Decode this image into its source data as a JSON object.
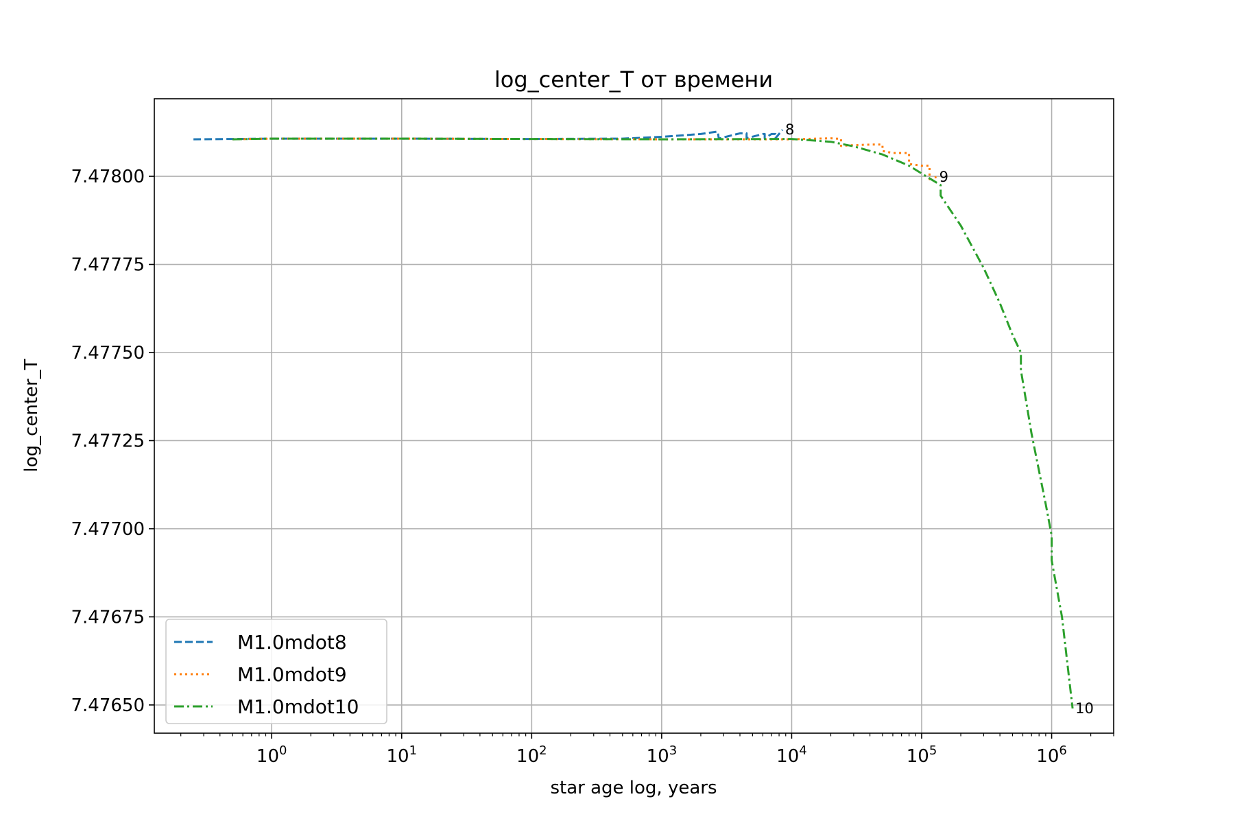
{
  "chart_data": {
    "type": "line",
    "title": "log_center_T от времени",
    "xlabel": "star age log, years",
    "ylabel": "log_center_T",
    "xscale": "log",
    "xlim": [
      0.125,
      3000000
    ],
    "ylim": [
      7.47642,
      7.47822
    ],
    "x_ticks": [
      1,
      10,
      100,
      1000,
      10000,
      100000,
      1000000
    ],
    "x_tick_labels": [
      {
        "base": "10",
        "exp": "0"
      },
      {
        "base": "10",
        "exp": "1"
      },
      {
        "base": "10",
        "exp": "2"
      },
      {
        "base": "10",
        "exp": "3"
      },
      {
        "base": "10",
        "exp": "4"
      },
      {
        "base": "10",
        "exp": "5"
      },
      {
        "base": "10",
        "exp": "6"
      }
    ],
    "y_ticks": [
      7.4765,
      7.47675,
      7.477,
      7.47725,
      7.4775,
      7.47775,
      7.478
    ],
    "y_tick_labels": [
      "7.47650",
      "7.47675",
      "7.47700",
      "7.47725",
      "7.47750",
      "7.47775",
      "7.47800"
    ],
    "grid": true,
    "legend_position": "lower-left",
    "series": [
      {
        "name": "M1.0mdot8",
        "color": "#1f77b4",
        "style": "dashed",
        "end_label": "8",
        "x": [
          0.25,
          1,
          10,
          100,
          500,
          1000,
          2000,
          2700,
          2750,
          4000,
          4500,
          4500,
          6000,
          6200,
          6200,
          7000,
          7500,
          7500,
          8500
        ],
        "y": [
          7.478105,
          7.478107,
          7.478107,
          7.478106,
          7.478107,
          7.478112,
          7.47812,
          7.478127,
          7.478107,
          7.478122,
          7.478122,
          7.478108,
          7.47812,
          7.47812,
          7.478108,
          7.47812,
          7.47812,
          7.478108,
          7.478132
        ]
      },
      {
        "name": "M1.0mdot9",
        "color": "#ff7f0e",
        "style": "dotted",
        "end_label": "9",
        "x": [
          0.5,
          1,
          10,
          100,
          1000,
          10000,
          20000,
          24000,
          24000,
          28000,
          30000,
          40000,
          50000,
          50000,
          60000,
          80000,
          80000,
          100000,
          115000,
          115000,
          130000
        ],
        "y": [
          7.478105,
          7.478107,
          7.478107,
          7.478106,
          7.478105,
          7.478105,
          7.478108,
          7.478106,
          7.478086,
          7.478088,
          7.478088,
          7.47809,
          7.47809,
          7.478072,
          7.478066,
          7.478066,
          7.478035,
          7.47803,
          7.47803,
          7.477992,
          7.477998
        ]
      },
      {
        "name": "M1.0mdot10",
        "color": "#2ca02c",
        "style": "dashdot",
        "end_label": "10",
        "x": [
          0.5,
          1,
          10,
          100,
          1000,
          10000,
          20000,
          30000,
          50000,
          80000,
          120000,
          140000,
          140000,
          200000,
          300000,
          400000,
          500000,
          580000,
          580000,
          700000,
          900000,
          1000000,
          1000000,
          1200000,
          1450000,
          1450000
        ],
        "y": [
          7.478105,
          7.478107,
          7.478107,
          7.478106,
          7.478105,
          7.478106,
          7.478098,
          7.478085,
          7.478062,
          7.47803,
          7.47799,
          7.477975,
          7.477945,
          7.47786,
          7.47774,
          7.47764,
          7.47755,
          7.4775,
          7.47745,
          7.47727,
          7.47707,
          7.47698,
          7.47691,
          7.47675,
          7.47649,
          7.47649
        ]
      }
    ]
  }
}
